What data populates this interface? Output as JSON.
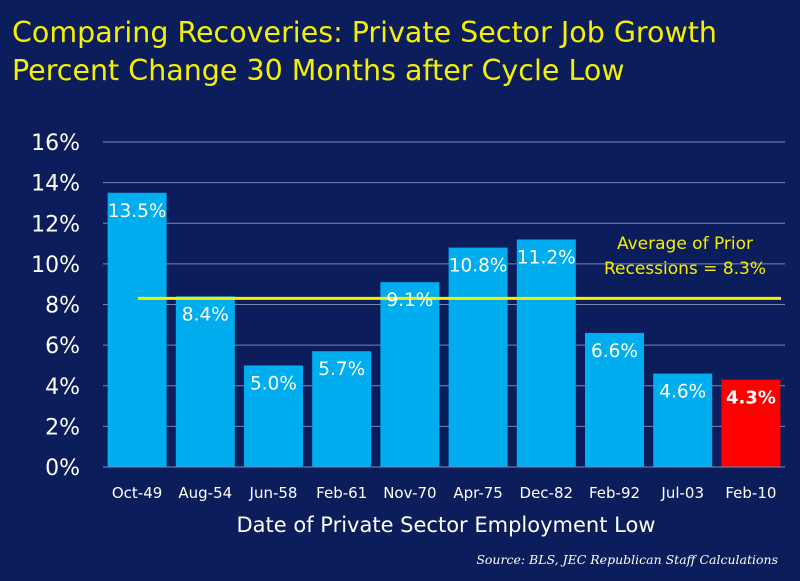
{
  "title": {
    "line1": "Comparing Recoveries:  Private Sector Job Growth",
    "line2": "Percent Change 30 Months after Cycle Low"
  },
  "source": "Source:  BLS, JEC Republican Staff Calculations",
  "colors": {
    "background": "#0c1d5c",
    "bar": "#00adef",
    "highlight_bar": "#ff0000",
    "average_line": "#f5f000",
    "title": "#f5f000",
    "axis_text": "#ffffff",
    "gridline": "#7a86b3"
  },
  "chart_data": {
    "type": "bar",
    "title": "Comparing Recoveries:  Private Sector Job Growth Percent Change 30 Months after Cycle Low",
    "xlabel": "Date of Private Sector Employment Low",
    "ylabel": "",
    "categories": [
      "Oct-49",
      "Aug-54",
      "Jun-58",
      "Feb-61",
      "Nov-70",
      "Apr-75",
      "Dec-82",
      "Feb-92",
      "Jul-03",
      "Feb-10"
    ],
    "values": [
      13.5,
      8.4,
      5.0,
      5.7,
      9.1,
      10.8,
      11.2,
      6.6,
      4.6,
      4.3
    ],
    "data_labels": [
      "13.5%",
      "8.4%",
      "5.0%",
      "5.7%",
      "9.1%",
      "10.8%",
      "11.2%",
      "6.6%",
      "4.6%",
      "4.3%"
    ],
    "highlight_index": 9,
    "ylim": [
      0,
      16
    ],
    "yticks": [
      0,
      2,
      4,
      6,
      8,
      10,
      12,
      14,
      16
    ],
    "ytick_labels": [
      "0%",
      "2%",
      "4%",
      "6%",
      "8%",
      "10%",
      "12%",
      "14%",
      "16%"
    ],
    "grid": true,
    "reference_line": {
      "value": 8.3,
      "label_line1": "Average of Prior",
      "label_line2": "Recessions = 8.3%"
    }
  }
}
